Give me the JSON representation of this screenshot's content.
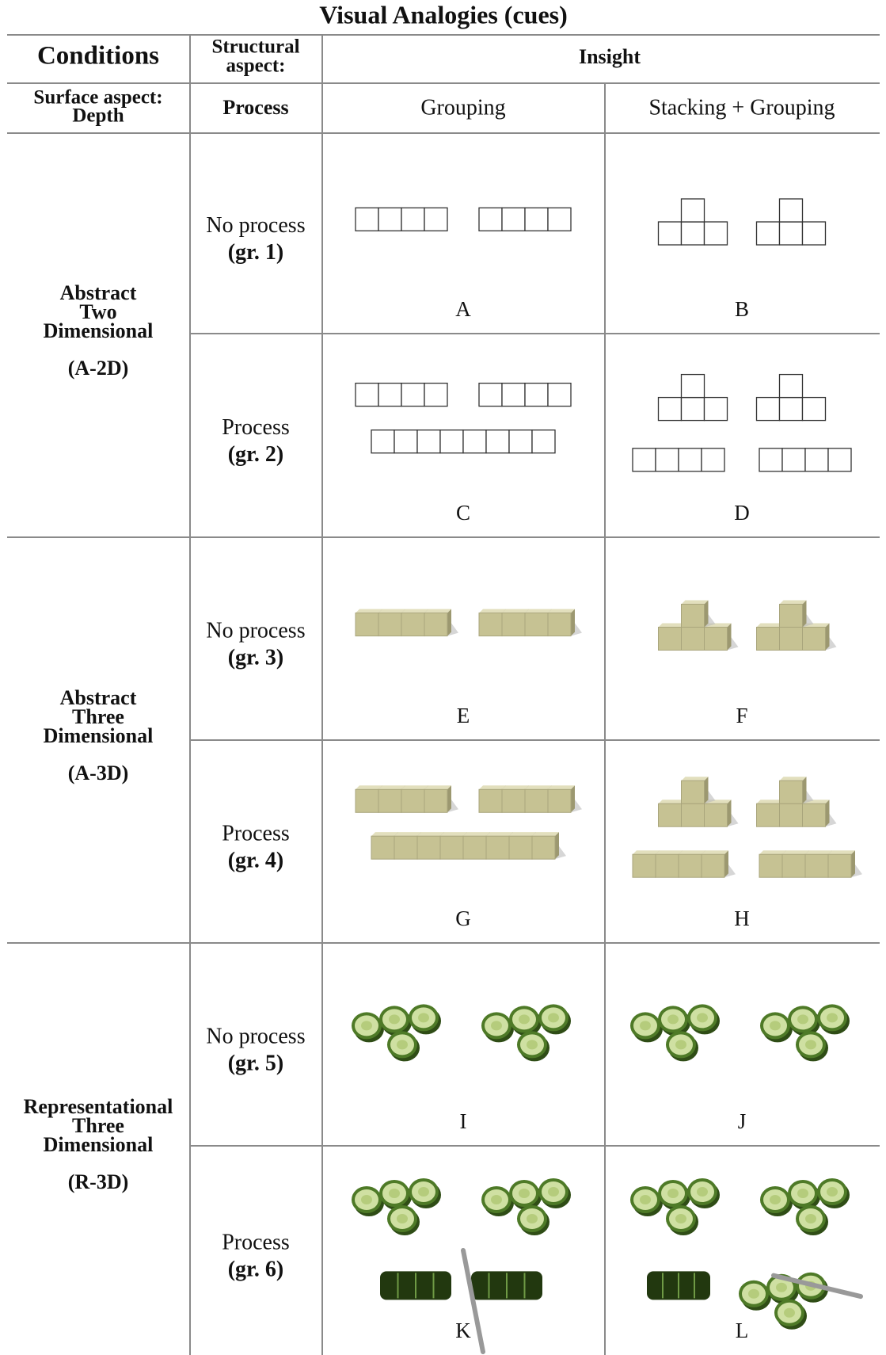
{
  "title": "Visual Analogies (cues)",
  "header": {
    "conditions": "Conditions",
    "structural_aspect": [
      "Structural",
      "aspect:"
    ],
    "insight": "Insight",
    "surface_aspect": [
      "Surface aspect:",
      "Depth"
    ],
    "process": "Process",
    "grouping": "Grouping",
    "stacking_grouping": "Stacking + Grouping"
  },
  "rows": [
    {
      "condition": [
        "Abstract",
        "Two",
        "Dimensional"
      ],
      "code": "(A-2D)",
      "subrows": [
        {
          "process": "No process",
          "group": "(gr. 1)",
          "cells": [
            "A",
            "B"
          ]
        },
        {
          "process": "Process",
          "group": "(gr. 2)",
          "cells": [
            "C",
            "D"
          ]
        }
      ]
    },
    {
      "condition": [
        "Abstract",
        "Three",
        "Dimensional"
      ],
      "code": "(A-3D)",
      "subrows": [
        {
          "process": "No process",
          "group": "(gr. 3)",
          "cells": [
            "E",
            "F"
          ]
        },
        {
          "process": "Process",
          "group": "(gr. 4)",
          "cells": [
            "G",
            "H"
          ]
        }
      ]
    },
    {
      "condition": [
        "Representational",
        "Three",
        "Dimensional"
      ],
      "code": "(R-3D)",
      "subrows": [
        {
          "process": "No process",
          "group": "(gr. 5)",
          "cells": [
            "I",
            "J"
          ]
        },
        {
          "process": "Process",
          "group": "(gr. 6)",
          "cells": [
            "K",
            "L"
          ]
        }
      ]
    }
  ]
}
